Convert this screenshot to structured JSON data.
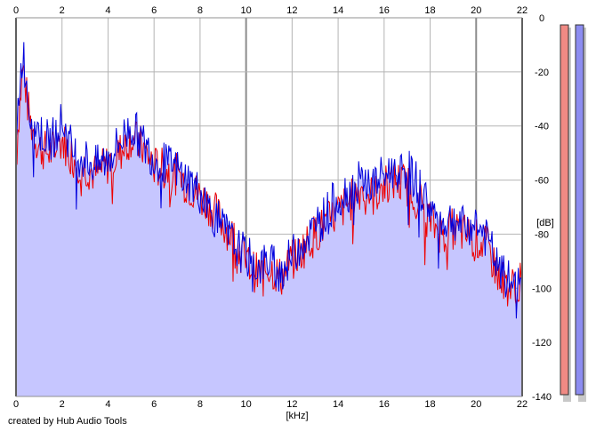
{
  "chart_data": {
    "type": "area",
    "xlabel": "[kHz]",
    "ylabel": "[dB]",
    "xlim": [
      0,
      22
    ],
    "ylim": [
      -140,
      0
    ],
    "x_ticks": [
      "0",
      "2",
      "4",
      "6",
      "8",
      "10",
      "12",
      "14",
      "16",
      "18",
      "20",
      "22"
    ],
    "y_ticks": [
      "0",
      "-20",
      "-40",
      "-60",
      "-80",
      "-100",
      "-120",
      "-140"
    ],
    "grid": true,
    "colors": {
      "fill": "#c6c6ff",
      "series_red": "#ee0000",
      "series_blue": "#0000dd",
      "grid": "#b4b4b4",
      "major_grid": "#8c8c8c",
      "meter_left": "#f08a84",
      "meter_right": "#8c8cf0"
    },
    "series": [
      {
        "color": "red",
        "x": [
          0,
          0.1,
          0.3,
          0.6,
          1,
          1.5,
          2,
          2.5,
          3,
          3.5,
          4,
          4.5,
          5,
          5.5,
          6,
          6.5,
          7,
          7.5,
          8,
          8.5,
          9,
          9.5,
          10,
          10.5,
          11,
          11.5,
          12,
          12.5,
          13,
          13.5,
          14,
          14.5,
          15,
          15.5,
          16,
          16.5,
          17,
          17.5,
          18,
          18.5,
          19,
          19.5,
          20,
          20.5,
          21,
          21.5,
          22
        ],
        "values": [
          -55,
          -38,
          -18,
          -38,
          -48,
          -50,
          -45,
          -52,
          -55,
          -58,
          -54,
          -50,
          -44,
          -48,
          -55,
          -56,
          -58,
          -62,
          -66,
          -70,
          -76,
          -82,
          -90,
          -95,
          -92,
          -96,
          -90,
          -85,
          -80,
          -76,
          -72,
          -68,
          -63,
          -66,
          -62,
          -60,
          -62,
          -66,
          -75,
          -80,
          -78,
          -80,
          -82,
          -85,
          -96,
          -100,
          -98
        ]
      },
      {
        "color": "blue",
        "x": [
          0,
          0.1,
          0.3,
          0.6,
          1,
          1.5,
          2,
          2.5,
          3,
          3.5,
          4,
          4.5,
          5,
          5.5,
          6,
          6.5,
          7,
          7.5,
          8,
          8.5,
          9,
          9.5,
          10,
          10.5,
          11,
          11.5,
          12,
          12.5,
          13,
          13.5,
          14,
          14.5,
          15,
          15.5,
          16,
          16.5,
          17,
          17.5,
          18,
          18.5,
          19,
          19.5,
          20,
          20.5,
          21,
          21.5,
          22
        ],
        "values": [
          -52,
          -30,
          -12,
          -35,
          -42,
          -46,
          -38,
          -50,
          -52,
          -55,
          -52,
          -46,
          -40,
          -46,
          -52,
          -54,
          -56,
          -60,
          -65,
          -72,
          -78,
          -84,
          -88,
          -92,
          -90,
          -94,
          -88,
          -82,
          -78,
          -72,
          -66,
          -64,
          -60,
          -62,
          -58,
          -56,
          -56,
          -62,
          -70,
          -76,
          -74,
          -78,
          -76,
          -82,
          -94,
          -98,
          -100
        ]
      }
    ]
  },
  "credit": "created by Hub Audio Tools"
}
